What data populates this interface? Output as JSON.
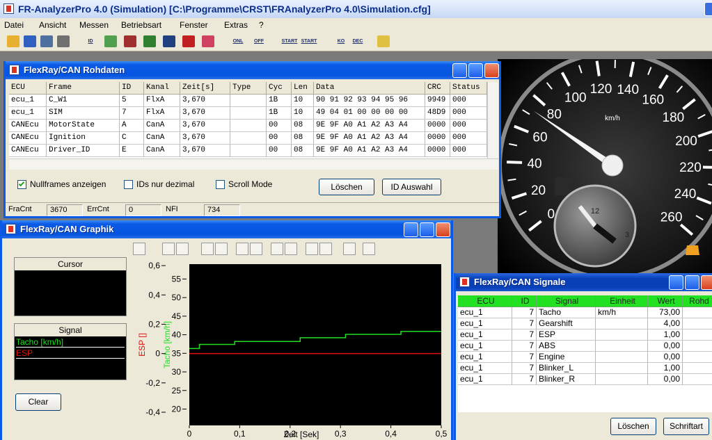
{
  "app": {
    "title": "FR-AnalyzerPro 4.0 (Simulation)  [C:\\Programme\\CRST\\FRAnalyzerPro 4.0\\Simulation.cfg]",
    "menu": [
      "Datei",
      "Ansicht",
      "Messen",
      "Betriebsart",
      "Fenster",
      "Extras",
      "?"
    ],
    "toolbar": [
      "ID",
      "ONL",
      "OFF",
      "START",
      "START",
      "KO",
      "DEC"
    ]
  },
  "raw": {
    "title": "FlexRay/CAN Rohdaten",
    "columns": [
      "ECU",
      "Frame",
      "ID",
      "Kanal",
      "Zeit[s]",
      "Type",
      "Cyc",
      "Len",
      "Data",
      "CRC",
      "Status"
    ],
    "rows": [
      {
        "ECU": "ecu_1",
        "Frame": "C_W1",
        "ID": "5",
        "Kanal": "FlxA",
        "Zeit[s]": "3,670",
        "Cyc": "1B",
        "Len": "10",
        "Data": "90 91 92 93 94 95 96",
        "CRC": "9949",
        "Status": "000"
      },
      {
        "ECU": "ecu_1",
        "Frame": "SIM",
        "ID": "7",
        "Kanal": "FlxA",
        "Zeit[s]": "3,670",
        "Cyc": "1B",
        "Len": "10",
        "Data": "49 04 01 00 00 00 00",
        "CRC": "48D9",
        "Status": "000"
      },
      {
        "ECU": "CANEcu",
        "Frame": "MotorState",
        "ID": "A",
        "Kanal": "CanA",
        "Zeit[s]": "3,670",
        "Cyc": "00",
        "Len": "08",
        "Data": "9E 9F A0 A1 A2 A3 A4",
        "CRC": "0000",
        "Status": "000"
      },
      {
        "ECU": "CANEcu",
        "Frame": "Ignition",
        "ID": "C",
        "Kanal": "CanA",
        "Zeit[s]": "3,670",
        "Cyc": "00",
        "Len": "08",
        "Data": "9E 9F A0 A1 A2 A3 A4",
        "CRC": "0000",
        "Status": "000"
      },
      {
        "ECU": "CANEcu",
        "Frame": "Driver_ID",
        "ID": "E",
        "Kanal": "CanA",
        "Zeit[s]": "3,670",
        "Cyc": "00",
        "Len": "08",
        "Data": "9E 9F A0 A1 A2 A3 A4",
        "CRC": "0000",
        "Status": "000"
      }
    ],
    "options": [
      {
        "label": "Nullframes anzeigen",
        "checked": true
      },
      {
        "label": "IDs nur dezimal",
        "checked": false
      },
      {
        "label": "Scroll Mode",
        "checked": false
      }
    ],
    "buttons": [
      "Löschen",
      "ID Auswahl"
    ],
    "status": [
      {
        "label": "FraCnt",
        "value": "3670"
      },
      {
        "label": "ErrCnt",
        "value": "0"
      },
      {
        "label": "NFI",
        "value": "734"
      }
    ]
  },
  "graph": {
    "title": "FlexRay/CAN Graphik",
    "cursor": "Cursor",
    "signal": "Signal",
    "button": "Clear"
  },
  "chart_data": {
    "type": "line",
    "xlabel": "Zeit [Sek]",
    "ylabel": "ESP []",
    "y2label": "Tacho [km/h]",
    "x": [
      0,
      0.02,
      0.02,
      0.09,
      0.09,
      0.22,
      0.22,
      0.31,
      0.31,
      0.42,
      0.42,
      0.5
    ],
    "xlim": [
      0,
      0.5
    ],
    "xticks": [
      0,
      {
        "value": 0.1,
        "label": "0,1"
      },
      {
        "value": 0.2,
        "label": "0,2"
      },
      {
        "value": 0.3,
        "label": "0,3"
      },
      {
        "value": 0.4,
        "label": "0,4"
      },
      {
        "value": 0.5,
        "label": "0,5"
      }
    ],
    "ylim": [
      -0.49,
      0.61
    ],
    "yticks": [
      {
        "value": 0.6,
        "label": "0,6"
      },
      {
        "value": 0.4,
        "label": "0,4"
      },
      {
        "value": 0.2,
        "label": "0,2"
      },
      0,
      {
        "value": -0.2,
        "label": "-0,2"
      },
      {
        "value": -0.4,
        "label": "-0,4"
      }
    ],
    "y2lim": [
      15.6,
      59
    ],
    "y2ticks": [
      55,
      50,
      45,
      40,
      35,
      30,
      25,
      20
    ],
    "series": [
      {
        "name": "Tacho [km/h]",
        "color": "#22dd22",
        "axis": "y2",
        "values": [
          36.3,
          36.3,
          37.4,
          37.4,
          38.2,
          38.2,
          39.2,
          39.2,
          40.1,
          40.1,
          40.9,
          40.9
        ]
      },
      {
        "name": "ESP",
        "color": "#e01010",
        "values": [
          0,
          0,
          0,
          0,
          0,
          0,
          0,
          0,
          0,
          0,
          0,
          0
        ]
      }
    ]
  },
  "signals": {
    "title": "FlexRay/CAN Signale",
    "columns": [
      "ECU",
      "ID",
      "Signal",
      "Einheit",
      "Wert",
      "Rohd"
    ],
    "rows": [
      {
        "ECU": "ecu_1",
        "ID": "7",
        "Signal": "Tacho",
        "Einheit": "km/h",
        "Wert": "73,00"
      },
      {
        "ECU": "ecu_1",
        "ID": "7",
        "Signal": "Gearshift",
        "Wert": "4,00"
      },
      {
        "ECU": "ecu_1",
        "ID": "7",
        "Signal": "ESP",
        "Wert": "1,00"
      },
      {
        "ECU": "ecu_1",
        "ID": "7",
        "Signal": "ABS",
        "Wert": "0,00"
      },
      {
        "ECU": "ecu_1",
        "ID": "7",
        "Signal": "Engine",
        "Wert": "0,00"
      },
      {
        "ECU": "ecu_1",
        "ID": "7",
        "Signal": "Blinker_L",
        "Wert": "1,00"
      },
      {
        "ECU": "ecu_1",
        "ID": "7",
        "Signal": "Blinker_R",
        "Wert": "0,00"
      }
    ],
    "buttons": [
      "Löschen",
      "Schriftart"
    ]
  },
  "gauge": {
    "labels": [
      0,
      20,
      40,
      60,
      80,
      100,
      120,
      140,
      160,
      180,
      200,
      220,
      240,
      260
    ],
    "unit": "km/h",
    "clock": [
      12,
      3
    ]
  }
}
